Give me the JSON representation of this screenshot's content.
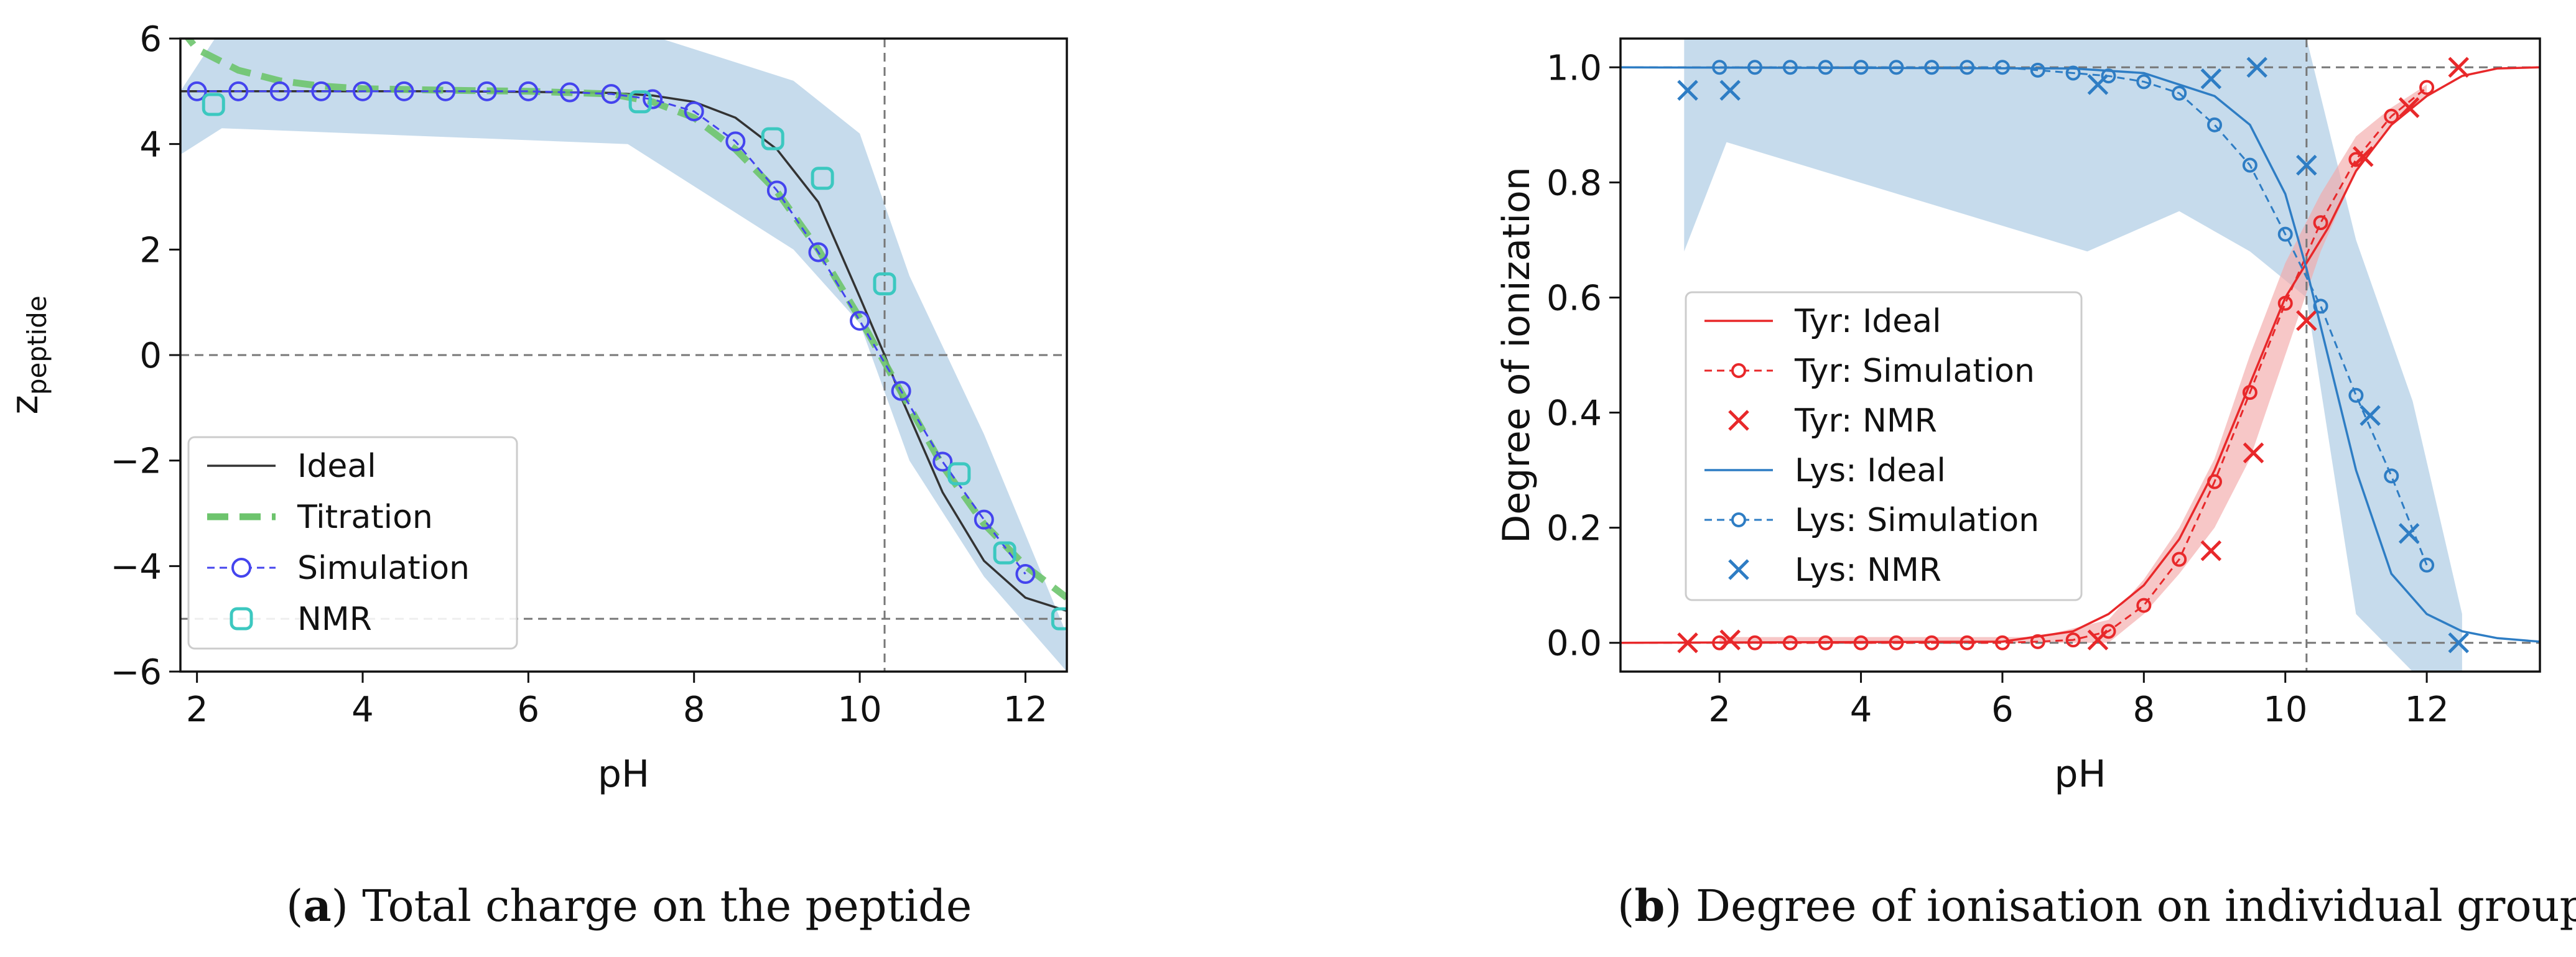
{
  "chart_data": [
    {
      "type": "line",
      "panel": "a",
      "caption": {
        "letter": "a",
        "text": "Total charge on the peptide"
      },
      "xlabel": "pH",
      "ylabel": "z",
      "ylabel_sub": "peptide",
      "xlim": [
        1.8,
        12.5
      ],
      "ylim": [
        -6,
        6
      ],
      "xticks": [
        2,
        4,
        6,
        8,
        10,
        12
      ],
      "yticks": [
        -6,
        -4,
        -2,
        0,
        2,
        4,
        6
      ],
      "grid": false,
      "legend_position": "lower-left",
      "reference_lines": {
        "vertical_x": 10.3,
        "horizontal_y": [
          0,
          -5
        ]
      },
      "series": [
        {
          "name": "Ideal",
          "style": "solid",
          "color": "#333333",
          "x": [
            1.8,
            2,
            3,
            4,
            5,
            6,
            7,
            7.5,
            8,
            8.5,
            9,
            9.5,
            10,
            10.3,
            10.5,
            11,
            11.5,
            12,
            12.5
          ],
          "y": [
            5,
            5,
            5,
            5,
            5,
            4.99,
            4.97,
            4.92,
            4.8,
            4.5,
            3.9,
            2.9,
            1.1,
            0,
            -0.8,
            -2.6,
            -3.9,
            -4.6,
            -4.85
          ]
        },
        {
          "name": "Titration",
          "style": "dashed-thick",
          "color": "#6dc46d",
          "x": [
            1.8,
            2,
            2.5,
            3,
            3.5,
            4,
            5,
            6,
            7,
            7.5,
            8,
            8.5,
            9,
            9.5,
            10,
            10.5,
            11,
            11.5,
            12,
            12.5
          ],
          "y": [
            6.2,
            5.8,
            5.4,
            5.2,
            5.1,
            5.05,
            5.02,
            5.0,
            4.95,
            4.8,
            4.5,
            3.9,
            3.1,
            2.0,
            0.7,
            -0.7,
            -2.1,
            -3.2,
            -4.0,
            -4.6
          ]
        },
        {
          "name": "Simulation",
          "style": "dashed-circle",
          "color": "#4444ee",
          "x": [
            2,
            2.5,
            3,
            3.5,
            4,
            4.5,
            5,
            5.5,
            6,
            6.5,
            7,
            7.5,
            8,
            8.5,
            9,
            9.5,
            10,
            10.5,
            11,
            11.5,
            12
          ],
          "y": [
            5,
            5,
            5,
            5,
            5,
            5,
            5,
            5,
            5,
            4.98,
            4.95,
            4.85,
            4.62,
            4.05,
            3.12,
            1.95,
            0.65,
            -0.68,
            -2.02,
            -3.12,
            -4.15
          ]
        },
        {
          "name": "NMR",
          "style": "marker-only",
          "color": "#3cc8c0",
          "x": [
            2.2,
            7.35,
            8.95,
            9.55,
            10.3,
            11.2,
            11.75,
            12.45
          ],
          "y": [
            4.75,
            4.8,
            4.1,
            3.35,
            1.35,
            -2.25,
            -3.75,
            -5.0
          ]
        }
      ],
      "band": {
        "color": "#a8c8e2",
        "x": [
          1.8,
          2.3,
          7.2,
          9.2,
          10.0,
          10.6,
          11.5,
          12.5
        ],
        "lower": [
          3.8,
          4.3,
          4.0,
          2.0,
          0.6,
          -2.0,
          -4.2,
          -6.0
        ],
        "upper": [
          5.0,
          6.2,
          6.2,
          5.2,
          4.2,
          1.5,
          -1.5,
          -5.3
        ]
      }
    },
    {
      "type": "line",
      "panel": "b",
      "caption": {
        "letter": "b",
        "text": "Degree of ionisation on individual groups."
      },
      "xlabel": "pH",
      "ylabel": "Degree of ionization",
      "xlim": [
        0.6,
        13.6
      ],
      "ylim": [
        -0.05,
        1.05
      ],
      "xticks": [
        2,
        4,
        6,
        8,
        10,
        12
      ],
      "yticks": [
        0.0,
        0.2,
        0.4,
        0.6,
        0.8,
        1.0
      ],
      "ytick_labels": [
        "0.0",
        "0.2",
        "0.4",
        "0.6",
        "0.8",
        "1.0"
      ],
      "grid": false,
      "legend_position": "center-left",
      "reference_lines": {
        "vertical_x": 10.3,
        "horizontal_y": [
          0,
          1
        ]
      },
      "series": [
        {
          "name": "Tyr: Ideal",
          "style": "solid",
          "color": "#e8282a",
          "x": [
            0.6,
            6,
            7,
            7.5,
            8,
            8.5,
            9,
            9.5,
            10,
            10.3,
            10.6,
            11,
            11.5,
            12,
            12.5,
            13,
            13.6
          ],
          "y": [
            0,
            0.002,
            0.02,
            0.05,
            0.1,
            0.18,
            0.3,
            0.45,
            0.6,
            0.66,
            0.72,
            0.82,
            0.9,
            0.95,
            0.985,
            0.998,
            1.0
          ]
        },
        {
          "name": "Tyr: Simulation",
          "style": "dashed-circle",
          "color": "#e8282a",
          "x": [
            2,
            2.5,
            3,
            3.5,
            4,
            4.5,
            5,
            5.5,
            6,
            6.5,
            7,
            7.5,
            8,
            8.5,
            9,
            9.5,
            10,
            10.5,
            11,
            11.5,
            12
          ],
          "y": [
            0,
            0,
            0,
            0,
            0,
            0,
            0,
            0,
            0,
            0.002,
            0.005,
            0.02,
            0.065,
            0.145,
            0.28,
            0.435,
            0.59,
            0.73,
            0.84,
            0.915,
            0.965
          ]
        },
        {
          "name": "Tyr: NMR",
          "style": "marker-x",
          "color": "#e8282a",
          "x": [
            1.55,
            2.15,
            7.35,
            8.95,
            9.55,
            10.3,
            11.1,
            11.75,
            12.45
          ],
          "y": [
            0,
            0.005,
            0.005,
            0.16,
            0.33,
            0.56,
            0.845,
            0.93,
            1.0
          ]
        },
        {
          "name": "Lys: Ideal",
          "style": "solid",
          "color": "#2e7dc4",
          "x": [
            0.6,
            7,
            8,
            9,
            9.5,
            10,
            10.3,
            10.6,
            11,
            11.5,
            12,
            12.5,
            13,
            13.6
          ],
          "y": [
            1,
            0.998,
            0.99,
            0.95,
            0.9,
            0.78,
            0.65,
            0.5,
            0.3,
            0.12,
            0.05,
            0.02,
            0.008,
            0.002
          ]
        },
        {
          "name": "Lys: Simulation",
          "style": "dashed-circle",
          "color": "#2e7dc4",
          "x": [
            2,
            2.5,
            3,
            3.5,
            4,
            4.5,
            5,
            5.5,
            6,
            6.5,
            7,
            7.5,
            8,
            8.5,
            9,
            9.5,
            10,
            10.5,
            11,
            11.5,
            12
          ],
          "y": [
            1,
            1,
            1,
            1,
            1,
            1,
            1,
            1,
            1,
            0.995,
            0.99,
            0.985,
            0.975,
            0.955,
            0.9,
            0.83,
            0.71,
            0.585,
            0.43,
            0.29,
            0.135
          ]
        },
        {
          "name": "Lys: NMR",
          "style": "marker-x",
          "color": "#2e7dc4",
          "x": [
            1.55,
            2.15,
            7.35,
            8.95,
            9.6,
            10.3,
            11.2,
            11.75,
            12.45
          ],
          "y": [
            0.96,
            0.96,
            0.97,
            0.98,
            1.0,
            0.83,
            0.395,
            0.19,
            0.0
          ]
        }
      ],
      "bands": [
        {
          "color": "#a8c8e2",
          "x": [
            1.5,
            2.1,
            7.2,
            8.5,
            9.5,
            10.3,
            11.0,
            11.8,
            12.5
          ],
          "lower": [
            0.68,
            0.87,
            0.68,
            0.75,
            0.68,
            0.6,
            0.05,
            -0.05,
            -0.05
          ],
          "upper": [
            1.05,
            1.05,
            1.05,
            1.05,
            1.05,
            1.05,
            0.7,
            0.42,
            0.05
          ]
        },
        {
          "color": "#f3a9a9",
          "x": [
            2.0,
            6.5,
            7.5,
            8,
            8.5,
            9,
            9.5,
            10,
            10.5,
            11,
            11.5,
            12
          ],
          "lower": [
            0.0,
            0.0,
            0.0,
            0.05,
            0.12,
            0.2,
            0.32,
            0.5,
            0.68,
            0.82,
            0.9,
            0.95
          ],
          "upper": [
            0.01,
            0.01,
            0.04,
            0.11,
            0.2,
            0.32,
            0.5,
            0.66,
            0.78,
            0.88,
            0.93,
            0.97
          ]
        }
      ]
    }
  ]
}
